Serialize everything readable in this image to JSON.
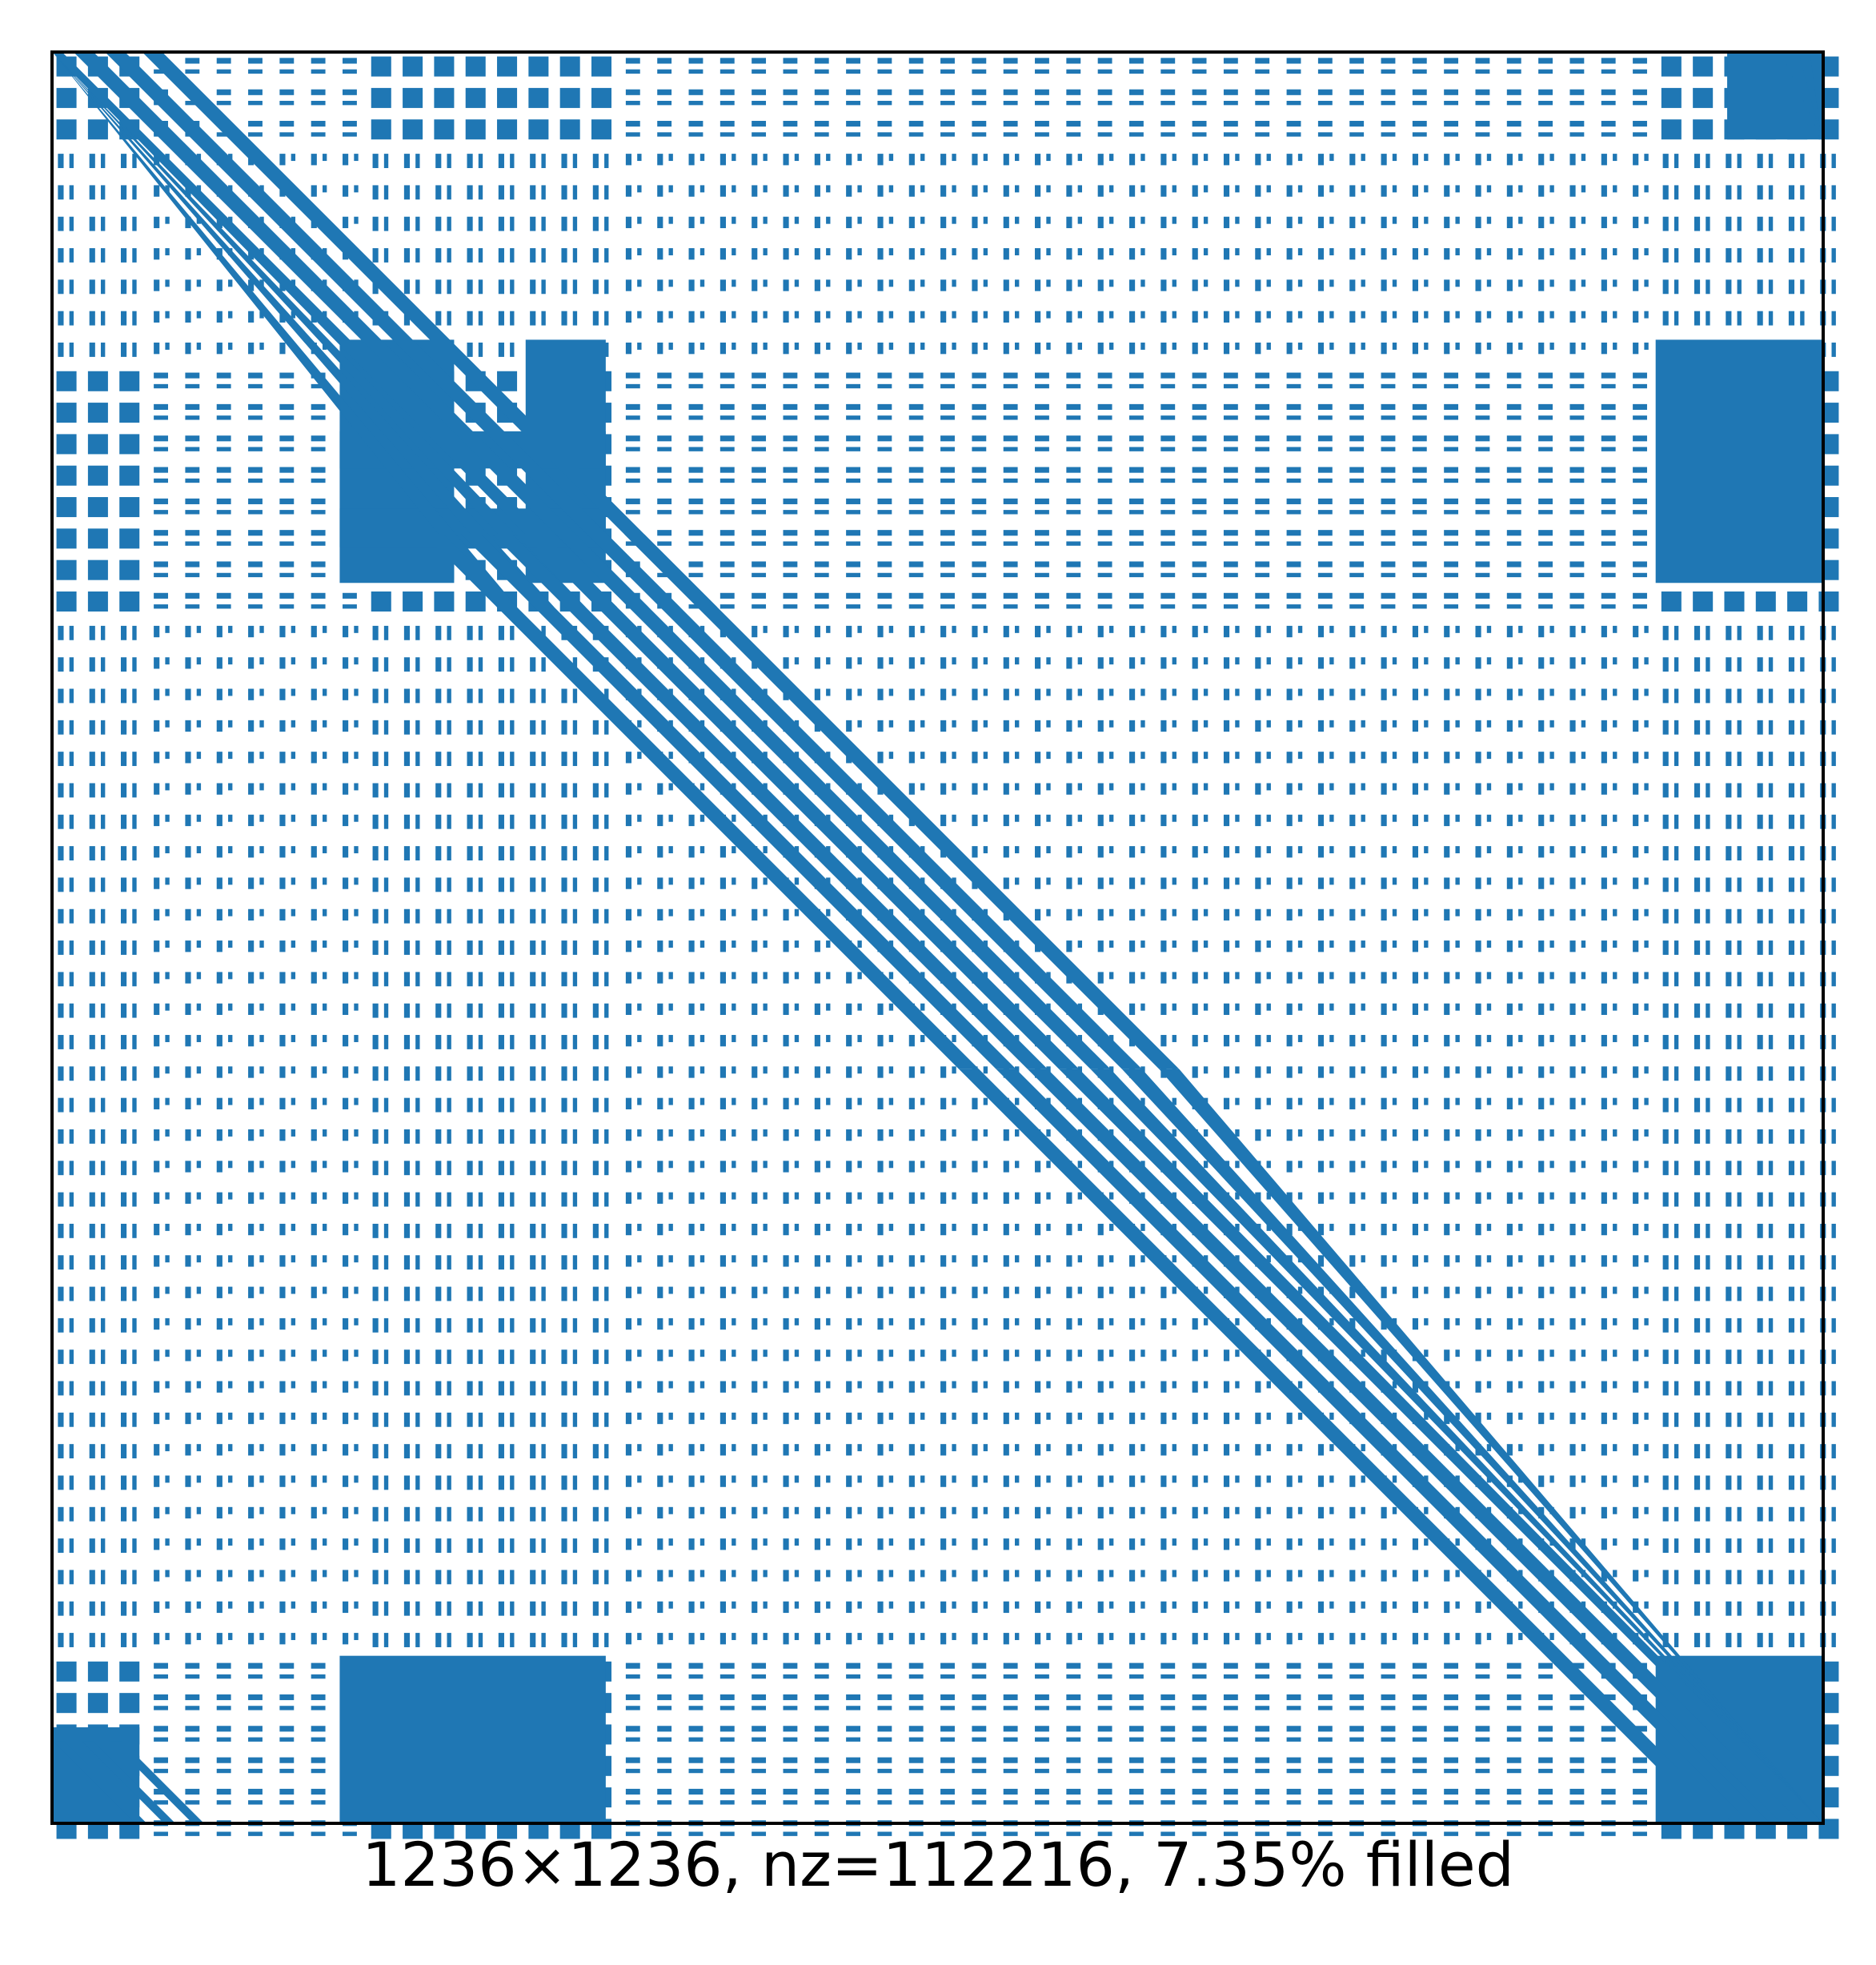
{
  "colors": {
    "marker": "#1f77b4",
    "frame": "#000000",
    "background": "#ffffff"
  },
  "chart_data": {
    "type": "heatmap",
    "subtype": "sparsity-pattern",
    "title": "",
    "xlabel": "1236×1236, nz=112216, 7.35% filled",
    "ylabel": "",
    "rows": 1236,
    "cols": 1236,
    "nnz": 112216,
    "density_percent": 7.35,
    "axis_ticks": "none",
    "grid": false,
    "block_size_approx": 22,
    "diagonal_bands": [
      {
        "name": "band-top-left",
        "row_range": [
          0,
          387
        ],
        "col_offsets": [
          -70,
          -44,
          -22,
          0,
          22,
          44,
          70
        ],
        "band_width": 14
      },
      {
        "name": "band-middle",
        "row_range": [
          336,
          710
        ],
        "col_offsets": [
          -70,
          -44,
          -22,
          0,
          22,
          44,
          70
        ],
        "band_width": 14
      },
      {
        "name": "band-bottom-right",
        "row_range": [
          710,
          1236
        ],
        "col_offsets": [
          -70,
          -44,
          -22,
          0,
          22,
          44,
          70
        ],
        "band_width": 14
      }
    ],
    "dense_blocks": [
      {
        "rows": [
          200,
          370
        ],
        "cols": [
          200,
          280
        ]
      },
      {
        "rows": [
          200,
          370
        ],
        "cols": [
          330,
          386
        ]
      },
      {
        "rows": [
          264,
          290
        ],
        "cols": [
          200,
          386
        ]
      },
      {
        "rows": [
          318,
          345
        ],
        "cols": [
          200,
          386
        ]
      },
      {
        "rows": [
          1120,
          1236
        ],
        "cols": [
          1120,
          1236
        ]
      },
      {
        "rows": [
          200,
          370
        ],
        "cols": [
          1120,
          1236
        ]
      },
      {
        "rows": [
          1120,
          1236
        ],
        "cols": [
          200,
          386
        ]
      },
      {
        "rows": [
          0,
          60
        ],
        "cols": [
          1170,
          1236
        ]
      },
      {
        "rows": [
          1170,
          1236
        ],
        "cols": [
          0,
          60
        ]
      }
    ],
    "corner_bands": [
      {
        "name": "corner-top-right",
        "row_range": [
          0,
          60
        ],
        "col_start": 1180
      },
      {
        "name": "corner-bottom-left",
        "row_range": [
          1180,
          1236
        ],
        "col_start": 0
      }
    ],
    "dense_row_groups": [
      [
        0,
        60
      ],
      [
        200,
        386
      ],
      [
        1120,
        1236
      ]
    ],
    "dense_col_groups": [
      [
        0,
        60
      ],
      [
        200,
        386
      ],
      [
        1120,
        1236
      ]
    ]
  }
}
